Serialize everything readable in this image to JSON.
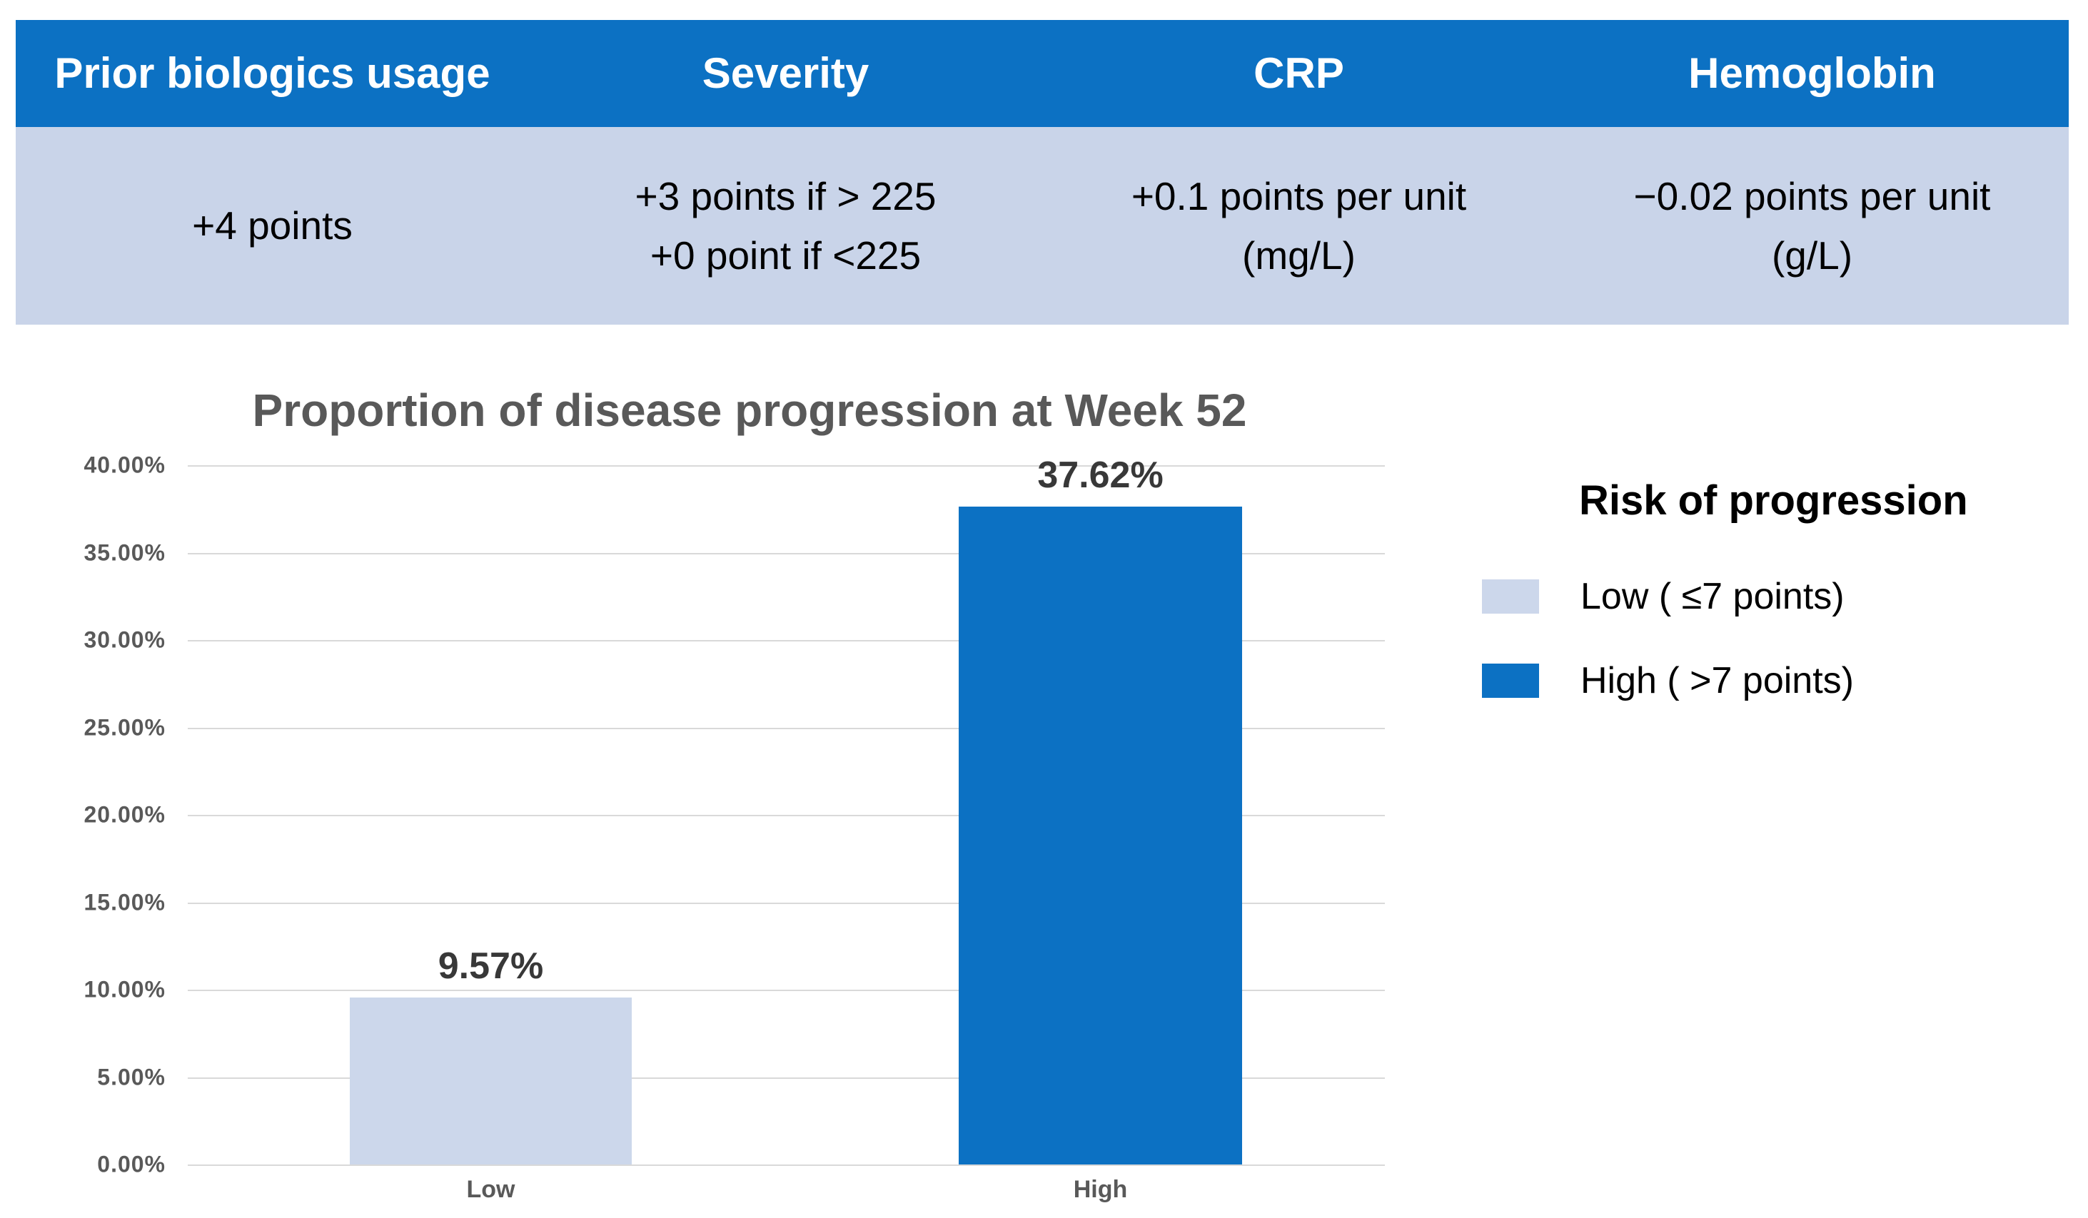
{
  "table": {
    "header_bg": "#0c71c3",
    "body_bg": "#c9d4e9",
    "columns": [
      {
        "header": "Prior biologics usage",
        "lines": [
          "+4 points",
          ""
        ]
      },
      {
        "header": "Severity",
        "lines": [
          "+3 points if > 225",
          "+0 point if <225"
        ]
      },
      {
        "header": "CRP",
        "lines": [
          "+0.1 points per unit",
          "(mg/L)"
        ]
      },
      {
        "header": "Hemoglobin",
        "lines": [
          "−0.02 points per unit",
          "(g/L)"
        ]
      }
    ]
  },
  "chart_data": {
    "type": "bar",
    "title": "Proportion of disease progression at Week 52",
    "categories": [
      "Low",
      "High"
    ],
    "values": [
      9.57,
      37.62
    ],
    "value_labels": [
      "9.57%",
      "37.62%"
    ],
    "xlabel": "",
    "ylabel": "",
    "ylim": [
      0,
      40
    ],
    "ytick_step": 5,
    "ytick_labels": [
      "40.00%",
      "35.00%",
      "30.00%",
      "25.00%",
      "20.00%",
      "15.00%",
      "10.00%",
      "5.00%",
      "0.00%"
    ],
    "grid": "horizontal",
    "gridline_color": "#d9d9d9",
    "bar_colors": [
      "#ccd7eb",
      "#0c71c3"
    ],
    "title_color": "#595959",
    "legend_position": "right"
  },
  "legend": {
    "title": "Risk of progression",
    "items": [
      {
        "label": "Low",
        "qualifier": " ( ≤7 points)",
        "color": "#ccd7eb"
      },
      {
        "label": "High",
        "qualifier": " ( >7 points)",
        "color": "#0c71c3"
      }
    ]
  }
}
